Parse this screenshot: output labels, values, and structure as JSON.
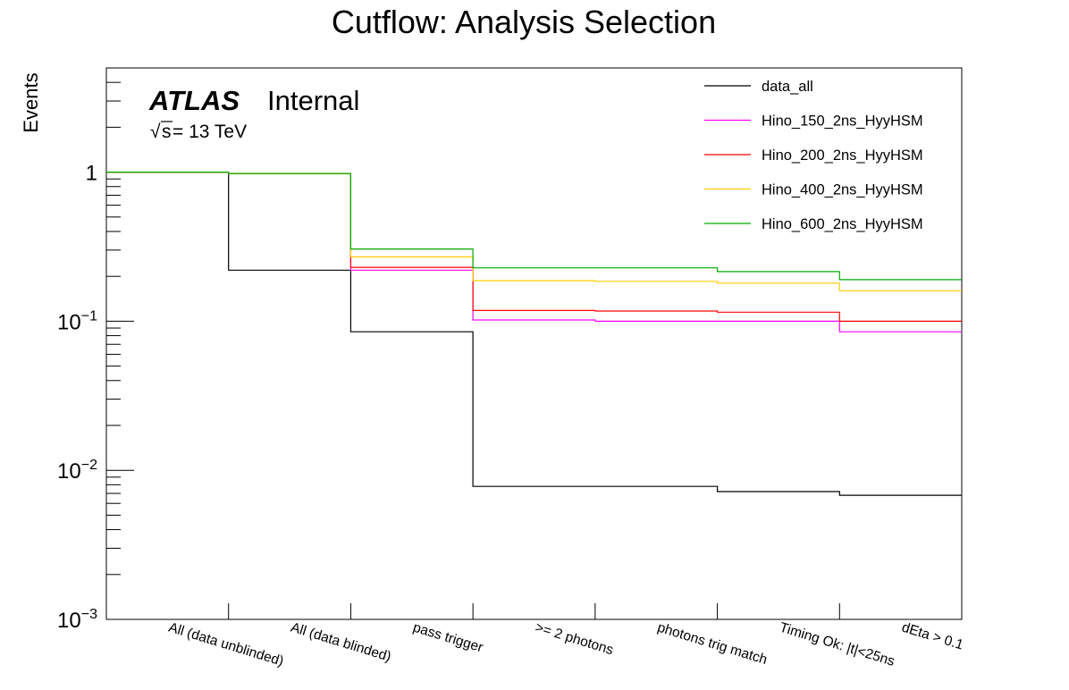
{
  "chart_data": {
    "type": "step",
    "title": "Cutflow: Analysis Selection",
    "xlabel": "",
    "ylabel": "Events",
    "yscale": "log",
    "ylim": [
      0.001,
      5
    ],
    "ytick_labels": [
      {
        "base": "10",
        "exp": "−3",
        "value": 0.001
      },
      {
        "base": "10",
        "exp": "−2",
        "value": 0.01
      },
      {
        "base": "10",
        "exp": "−1",
        "value": 0.1
      },
      {
        "base": "1",
        "exp": "",
        "value": 1
      }
    ],
    "categories": [
      "All (data unblinded)",
      "All (data blinded)",
      "pass trigger",
      ">= 2 photons",
      "photons trig match",
      "Timing Ok: |t|<25ns",
      "dEta > 0.1"
    ],
    "series": [
      {
        "name": "data_all",
        "color": "#000000",
        "values": [
          1.0,
          0.22,
          0.085,
          0.0078,
          0.0078,
          0.0072,
          0.0068
        ]
      },
      {
        "name": "Hino_150_2ns_HyyHSM",
        "color": "#ff00ff",
        "values": [
          1.0,
          0.98,
          0.22,
          0.102,
          0.1,
          0.1,
          0.085
        ]
      },
      {
        "name": "Hino_200_2ns_HyyHSM",
        "color": "#ff0000",
        "values": [
          1.0,
          0.98,
          0.23,
          0.118,
          0.117,
          0.115,
          0.1
        ]
      },
      {
        "name": "Hino_400_2ns_HyyHSM",
        "color": "#ffcc00",
        "values": [
          1.0,
          0.98,
          0.27,
          0.187,
          0.185,
          0.18,
          0.16
        ]
      },
      {
        "name": "Hino_600_2ns_HyyHSM",
        "color": "#00aa00",
        "values": [
          1.0,
          0.98,
          0.305,
          0.228,
          0.228,
          0.215,
          0.19
        ]
      }
    ],
    "legend_position": "top-right",
    "annotations": {
      "experiment": "ATLAS",
      "status": "Internal",
      "sqrt_symbol": "√",
      "energy_var": "s",
      "energy_value": " = 13 TeV"
    }
  }
}
